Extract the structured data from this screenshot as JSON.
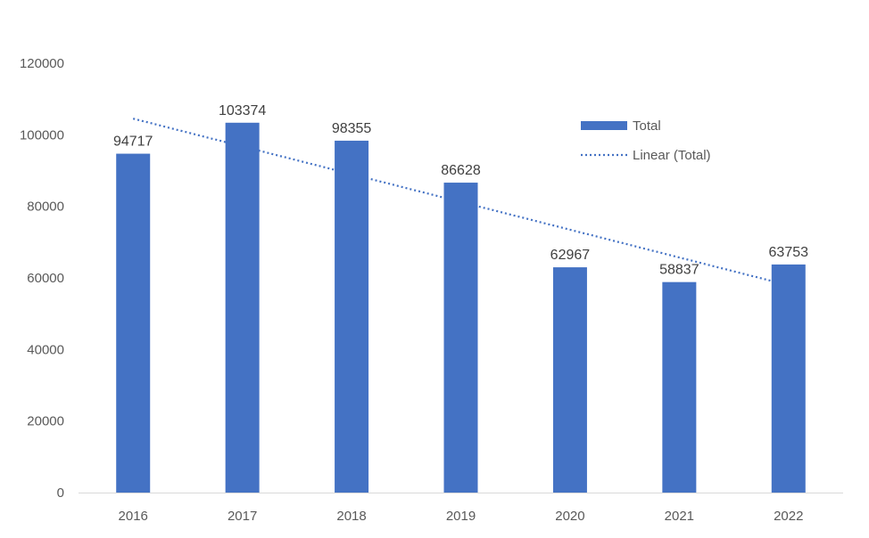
{
  "chart_data": {
    "type": "bar",
    "title": "",
    "xlabel": "",
    "ylabel": "",
    "categories": [
      "2016",
      "2017",
      "2018",
      "2019",
      "2020",
      "2021",
      "2022"
    ],
    "series": [
      {
        "name": "Total",
        "values": [
          94717,
          103374,
          98355,
          86628,
          62967,
          58837,
          63753
        ],
        "color": "#4472C4"
      }
    ],
    "trendline": {
      "name": "Linear (Total)",
      "type": "linear",
      "color": "#4472C4",
      "style": "dotted"
    },
    "ylim": [
      0,
      120000
    ],
    "yticks": [
      "0",
      "20000",
      "40000",
      "60000",
      "80000",
      "100000",
      "120000"
    ],
    "grid": false,
    "data_labels": true,
    "legend": {
      "placement": "top-right",
      "entries": [
        "Total",
        "Linear (Total)"
      ]
    }
  }
}
